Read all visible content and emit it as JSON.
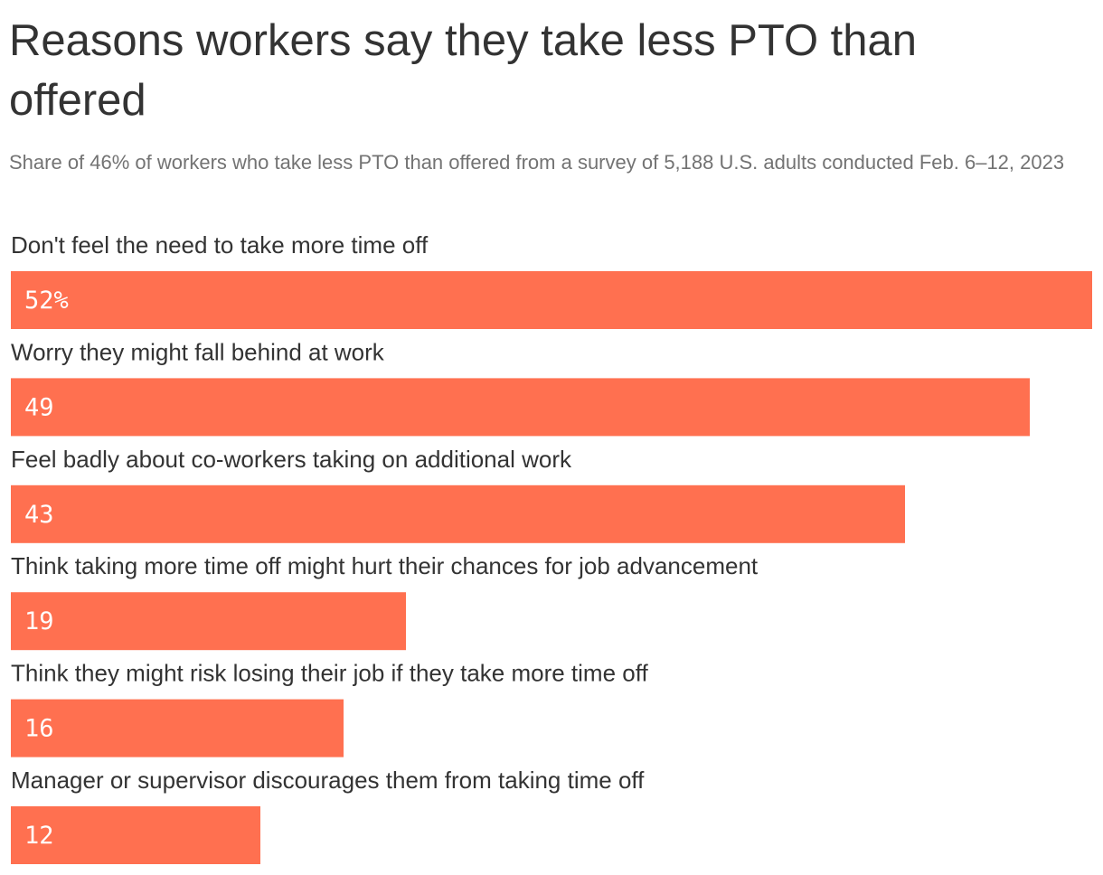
{
  "title": "Reasons workers say they take less PTO than offered",
  "subtitle": "Share of 46% of workers who take less PTO than offered from a survey of 5,188 U.S. adults conducted Feb. 6–12, 2023",
  "colors": {
    "bar": "#ff7050",
    "text": "#333333",
    "subtitle": "#737373",
    "value_label": "#ffffff"
  },
  "chart_data": {
    "type": "bar",
    "orientation": "horizontal",
    "title": "Reasons workers say they take less PTO than offered",
    "subtitle": "Share of 46% of workers who take less PTO than offered from a survey of 5,188 U.S. adults conducted Feb. 6–12, 2023",
    "categories": [
      "Don't feel the need to take more time off",
      "Worry they might fall behind at work",
      "Feel badly about co-workers taking on additional work",
      "Think taking more time off might hurt their chances for job advancement",
      "Think they might risk losing their job if they take more time off",
      "Manager or supervisor discourages them from taking time off"
    ],
    "values": [
      52,
      49,
      43,
      19,
      16,
      12
    ],
    "value_labels": [
      "52%",
      "49",
      "43",
      "19",
      "16",
      "12"
    ],
    "unit": "%",
    "xlim": [
      0,
      52
    ],
    "grid": false,
    "legend": "none"
  }
}
